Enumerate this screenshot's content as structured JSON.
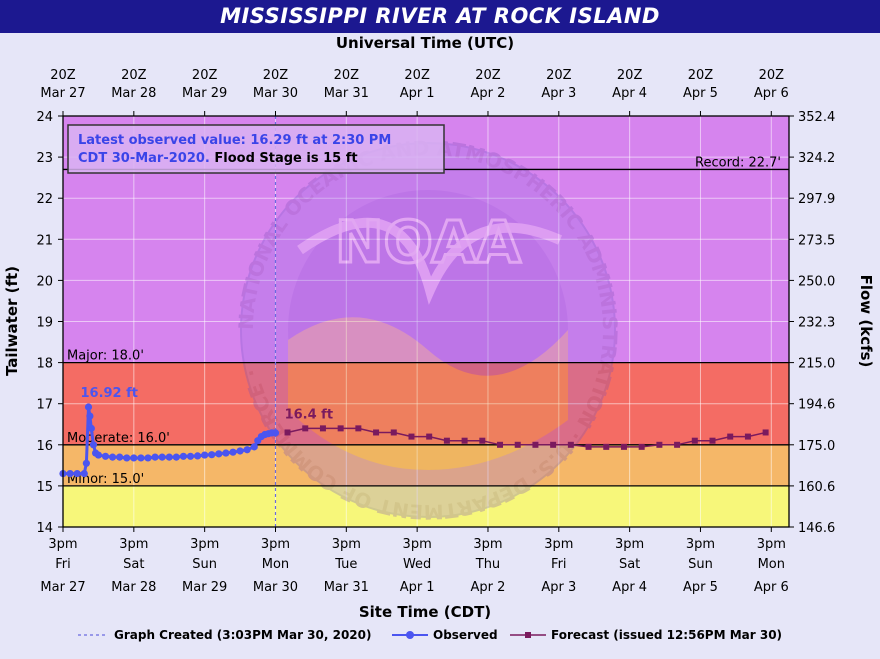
{
  "title": "MISSISSIPPI RIVER AT ROCK ISLAND",
  "chart_data": {
    "type": "line",
    "top_axis_title": "Universal Time (UTC)",
    "bottom_axis_title": "Site Time (CDT)",
    "ylabel_left": "Tailwater (ft)",
    "ylabel_right": "Flow (kcfs)",
    "ylim": [
      14,
      24
    ],
    "y_ticks": [
      "14",
      "15",
      "16",
      "17",
      "18",
      "19",
      "20",
      "21",
      "22",
      "23",
      "24"
    ],
    "right_ticks": [
      "146.6",
      "160.6",
      "175.0",
      "194.6",
      "215.0",
      "232.3",
      "250.0",
      "273.5",
      "297.9",
      "324.2",
      "352.4"
    ],
    "x_range_days": [
      0,
      10.25
    ],
    "top_ticks": [
      {
        "l1": "20Z",
        "l2": "Mar 27"
      },
      {
        "l1": "20Z",
        "l2": "Mar 28"
      },
      {
        "l1": "20Z",
        "l2": "Mar 29"
      },
      {
        "l1": "20Z",
        "l2": "Mar 30"
      },
      {
        "l1": "20Z",
        "l2": "Mar 31"
      },
      {
        "l1": "20Z",
        "l2": "Apr  1"
      },
      {
        "l1": "20Z",
        "l2": "Apr  2"
      },
      {
        "l1": "20Z",
        "l2": "Apr  3"
      },
      {
        "l1": "20Z",
        "l2": "Apr  4"
      },
      {
        "l1": "20Z",
        "l2": "Apr  5"
      },
      {
        "l1": "20Z",
        "l2": "Apr  6"
      }
    ],
    "bottom_ticks": [
      {
        "l1": "3pm",
        "l2": "Fri",
        "l3": "Mar 27"
      },
      {
        "l1": "3pm",
        "l2": "Sat",
        "l3": "Mar 28"
      },
      {
        "l1": "3pm",
        "l2": "Sun",
        "l3": "Mar 29"
      },
      {
        "l1": "3pm",
        "l2": "Mon",
        "l3": "Mar 30"
      },
      {
        "l1": "3pm",
        "l2": "Tue",
        "l3": "Mar 31"
      },
      {
        "l1": "3pm",
        "l2": "Wed",
        "l3": "Apr 1"
      },
      {
        "l1": "3pm",
        "l2": "Thu",
        "l3": "Apr 2"
      },
      {
        "l1": "3pm",
        "l2": "Fri",
        "l3": "Apr 3"
      },
      {
        "l1": "3pm",
        "l2": "Sat",
        "l3": "Apr 4"
      },
      {
        "l1": "3pm",
        "l2": "Sun",
        "l3": "Apr 5"
      },
      {
        "l1": "3pm",
        "l2": "Mon",
        "l3": "Apr 6"
      }
    ],
    "flood_levels": [
      {
        "label": "Record: 22.7'",
        "value": 22.7
      },
      {
        "label": "Major: 18.0'",
        "value": 18.0
      },
      {
        "label": "Moderate: 16.0'",
        "value": 16.0
      },
      {
        "label": "Minor: 15.0'",
        "value": 15.0
      }
    ],
    "bands": [
      {
        "from": 14,
        "to": 15,
        "color": "#f7f77a"
      },
      {
        "from": 15,
        "to": 16,
        "color": "#f5b768"
      },
      {
        "from": 16,
        "to": 18,
        "color": "#f46c64"
      },
      {
        "from": 18,
        "to": 24,
        "color": "#d684ee"
      }
    ],
    "graph_created_day": 3.0,
    "series": [
      {
        "name": "Observed",
        "color": "#4b55f0",
        "points": [
          [
            0.0,
            15.3
          ],
          [
            0.1,
            15.3
          ],
          [
            0.2,
            15.3
          ],
          [
            0.3,
            15.3
          ],
          [
            0.33,
            15.55
          ],
          [
            0.36,
            16.92
          ],
          [
            0.38,
            16.7
          ],
          [
            0.4,
            16.4
          ],
          [
            0.43,
            16.0
          ],
          [
            0.46,
            15.8
          ],
          [
            0.5,
            15.75
          ],
          [
            0.6,
            15.72
          ],
          [
            0.7,
            15.7
          ],
          [
            0.8,
            15.7
          ],
          [
            0.9,
            15.68
          ],
          [
            1.0,
            15.68
          ],
          [
            1.1,
            15.68
          ],
          [
            1.2,
            15.68
          ],
          [
            1.3,
            15.7
          ],
          [
            1.4,
            15.7
          ],
          [
            1.5,
            15.7
          ],
          [
            1.6,
            15.7
          ],
          [
            1.7,
            15.72
          ],
          [
            1.8,
            15.72
          ],
          [
            1.9,
            15.73
          ],
          [
            2.0,
            15.75
          ],
          [
            2.1,
            15.76
          ],
          [
            2.2,
            15.78
          ],
          [
            2.3,
            15.8
          ],
          [
            2.4,
            15.82
          ],
          [
            2.5,
            15.85
          ],
          [
            2.6,
            15.88
          ],
          [
            2.7,
            15.95
          ],
          [
            2.75,
            16.1
          ],
          [
            2.8,
            16.2
          ],
          [
            2.85,
            16.25
          ],
          [
            2.9,
            16.27
          ],
          [
            2.95,
            16.29
          ],
          [
            3.0,
            16.29
          ]
        ]
      },
      {
        "name": "Forecast (issued 12:56PM Mar 30)",
        "color": "#7a1a5e",
        "points": [
          [
            3.17,
            16.3
          ],
          [
            3.42,
            16.4
          ],
          [
            3.67,
            16.4
          ],
          [
            3.92,
            16.4
          ],
          [
            4.17,
            16.4
          ],
          [
            4.42,
            16.3
          ],
          [
            4.67,
            16.3
          ],
          [
            4.92,
            16.2
          ],
          [
            5.17,
            16.2
          ],
          [
            5.42,
            16.1
          ],
          [
            5.67,
            16.1
          ],
          [
            5.92,
            16.1
          ],
          [
            6.17,
            16.0
          ],
          [
            6.42,
            16.0
          ],
          [
            6.67,
            16.0
          ],
          [
            6.92,
            16.0
          ],
          [
            7.17,
            16.0
          ],
          [
            7.42,
            15.95
          ],
          [
            7.67,
            15.95
          ],
          [
            7.92,
            15.95
          ],
          [
            8.17,
            15.95
          ],
          [
            8.42,
            16.0
          ],
          [
            8.67,
            16.0
          ],
          [
            8.92,
            16.1
          ],
          [
            9.17,
            16.1
          ],
          [
            9.42,
            16.2
          ],
          [
            9.67,
            16.2
          ],
          [
            9.92,
            16.3
          ]
        ]
      }
    ],
    "annotations": [
      {
        "text": "16.92 ft",
        "x": 0.36,
        "y": 16.92,
        "color": "#4b55f0"
      },
      {
        "text": "16.4 ft",
        "x": 3.1,
        "y": 16.4,
        "color": "#7a1a5e"
      }
    ],
    "info_line1": "Latest observed value: 16.29 ft at 2:30 PM",
    "info_line2_prefix": "CDT 30-Mar-2020.",
    "info_line2_suffix": "Flood Stage is 15 ft",
    "info_color": "#3a44e8",
    "legend": {
      "created": "Graph Created (3:03PM Mar 30, 2020)",
      "observed": "Observed",
      "forecast": "Forecast (issued 12:56PM Mar 30)"
    },
    "watermark_text": "NOAA",
    "watermark_ring": "NATIONAL OCEANIC AND ATMOSPHERIC ADMINISTRATION · U.S. DEPARTMENT OF COMMERCE ·"
  }
}
